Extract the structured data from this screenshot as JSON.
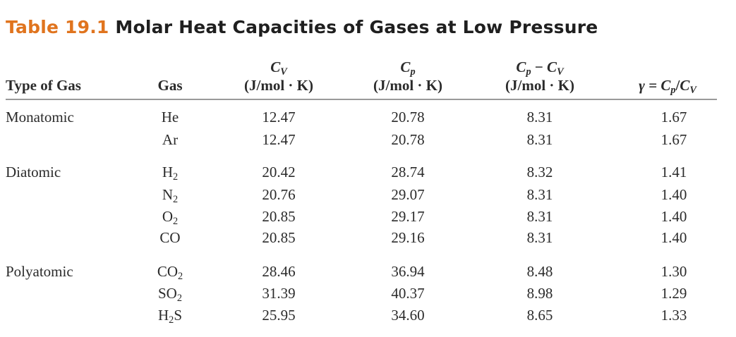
{
  "title": {
    "label": "Table 19.1",
    "text": "Molar Heat Capacities of Gases at Low Pressure"
  },
  "headers": {
    "type": "Type of Gas",
    "gas": "Gas",
    "cv_sym": "C",
    "cv_sub": "V",
    "cp_sym": "C",
    "cp_sub": "p",
    "diff_sym1": "C",
    "diff_sub1": "p",
    "diff_minus": " − ",
    "diff_sym2": "C",
    "diff_sub2": "V",
    "unit": "(J/mol · K)",
    "gamma_pre": "γ = ",
    "gamma_sym1": "C",
    "gamma_sub1": "p",
    "gamma_slash": "/",
    "gamma_sym2": "C",
    "gamma_sub2": "V"
  },
  "groups": [
    {
      "type": "Monatomic",
      "rows": [
        {
          "gas": "He",
          "gas_sub": "",
          "gas_tail": "",
          "cv": "12.47",
          "cp": "20.78",
          "diff": "8.31",
          "gamma": "1.67"
        },
        {
          "gas": "Ar",
          "gas_sub": "",
          "gas_tail": "",
          "cv": "12.47",
          "cp": "20.78",
          "diff": "8.31",
          "gamma": "1.67"
        }
      ]
    },
    {
      "type": "Diatomic",
      "rows": [
        {
          "gas": "H",
          "gas_sub": "2",
          "gas_tail": "",
          "cv": "20.42",
          "cp": "28.74",
          "diff": "8.32",
          "gamma": "1.41"
        },
        {
          "gas": "N",
          "gas_sub": "2",
          "gas_tail": "",
          "cv": "20.76",
          "cp": "29.07",
          "diff": "8.31",
          "gamma": "1.40"
        },
        {
          "gas": "O",
          "gas_sub": "2",
          "gas_tail": "",
          "cv": "20.85",
          "cp": "29.17",
          "diff": "8.31",
          "gamma": "1.40"
        },
        {
          "gas": "CO",
          "gas_sub": "",
          "gas_tail": "",
          "cv": "20.85",
          "cp": "29.16",
          "diff": "8.31",
          "gamma": "1.40"
        }
      ]
    },
    {
      "type": "Polyatomic",
      "rows": [
        {
          "gas": "CO",
          "gas_sub": "2",
          "gas_tail": "",
          "cv": "28.46",
          "cp": "36.94",
          "diff": "8.48",
          "gamma": "1.30"
        },
        {
          "gas": "SO",
          "gas_sub": "2",
          "gas_tail": "",
          "cv": "31.39",
          "cp": "40.37",
          "diff": "8.98",
          "gamma": "1.29"
        },
        {
          "gas": "H",
          "gas_sub": "2",
          "gas_tail": "S",
          "cv": "25.95",
          "cp": "34.60",
          "diff": "8.65",
          "gamma": "1.33"
        }
      ]
    }
  ]
}
